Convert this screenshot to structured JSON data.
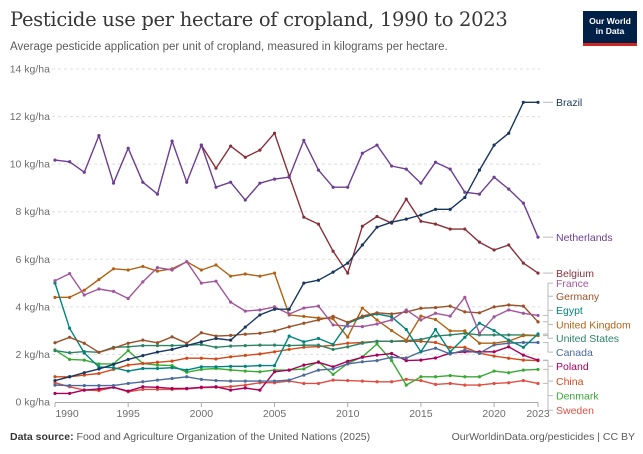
{
  "header": {
    "title": "Pesticide use per hectare of cropland, 1990 to 2023",
    "subtitle": "Average pesticide application per unit of cropland, measured in kilograms per hectare.",
    "logo_line1": "Our World",
    "logo_line2": "in Data"
  },
  "footer": {
    "source_label": "Data source:",
    "source_text": "Food and Agriculture Organization of the United Nations (2025)",
    "url_license": "OurWorldinData.org/pesticides | CC BY"
  },
  "chart_data": {
    "type": "line",
    "title": "Pesticide use per hectare of cropland, 1990 to 2023",
    "subtitle": "Average pesticide application per unit of cropland, measured in kilograms per hectare.",
    "xlabel": "",
    "ylabel": "",
    "unit": "kg/ha",
    "xlim": [
      1990,
      2023
    ],
    "ylim": [
      0,
      14
    ],
    "grid": "horizontal-dashed",
    "legend": "right-end-labels",
    "x_ticks": [
      1990,
      1995,
      2000,
      2005,
      2010,
      2015,
      2020,
      2023
    ],
    "y_ticks": [
      {
        "value": 0,
        "label": "0 kg/ha"
      },
      {
        "value": 2,
        "label": "2 kg/ha"
      },
      {
        "value": 4,
        "label": "4 kg/ha"
      },
      {
        "value": 6,
        "label": "6 kg/ha"
      },
      {
        "value": 8,
        "label": "8 kg/ha"
      },
      {
        "value": 10,
        "label": "10 kg/ha"
      },
      {
        "value": 12,
        "label": "12 kg/ha"
      },
      {
        "value": 14,
        "label": "14 kg/ha"
      }
    ],
    "x": [
      1990,
      1991,
      1992,
      1993,
      1994,
      1995,
      1996,
      1997,
      1998,
      1999,
      2000,
      2001,
      2002,
      2003,
      2004,
      2005,
      2006,
      2007,
      2008,
      2009,
      2010,
      2011,
      2012,
      2013,
      2014,
      2015,
      2016,
      2017,
      2018,
      2019,
      2020,
      2021,
      2022,
      2023
    ],
    "series": [
      {
        "name": "Brazil",
        "color": "#18375f",
        "label_value": 12.6,
        "values": [
          0.9,
          1.06,
          1.23,
          1.39,
          1.58,
          1.79,
          1.95,
          2.1,
          2.21,
          2.37,
          2.53,
          2.67,
          2.6,
          3.15,
          3.66,
          3.9,
          3.9,
          5.0,
          5.12,
          5.46,
          5.84,
          6.6,
          7.35,
          7.56,
          7.69,
          7.86,
          8.1,
          8.1,
          8.6,
          9.75,
          10.8,
          11.3,
          12.6,
          12.6
        ]
      },
      {
        "name": "Netherlands",
        "color": "#6d3e91",
        "label_value": 6.93,
        "values": [
          10.17,
          10.1,
          9.66,
          11.2,
          9.2,
          10.67,
          9.24,
          8.74,
          10.97,
          9.24,
          10.8,
          9.03,
          9.24,
          8.49,
          9.2,
          9.37,
          9.45,
          11.0,
          9.75,
          9.03,
          9.03,
          10.46,
          10.8,
          9.92,
          9.79,
          9.2,
          10.08,
          9.79,
          8.82,
          8.74,
          9.45,
          8.95,
          8.36,
          6.93
        ]
      },
      {
        "name": "Belgium",
        "color": "#883039",
        "label_value": 5.42,
        "values": [
          null,
          null,
          null,
          null,
          null,
          null,
          null,
          null,
          null,
          null,
          10.8,
          9.83,
          10.76,
          10.29,
          10.59,
          11.3,
          9.5,
          7.77,
          7.48,
          6.34,
          5.42,
          7.39,
          7.8,
          7.52,
          8.53,
          7.6,
          7.48,
          7.27,
          7.27,
          6.72,
          6.39,
          6.6,
          5.84,
          5.42
        ]
      },
      {
        "name": "France",
        "color": "#a2559c",
        "label_value": 5.0,
        "values": [
          5.1,
          5.4,
          4.5,
          4.75,
          4.65,
          4.35,
          5.05,
          5.65,
          5.55,
          5.9,
          5.0,
          5.08,
          4.2,
          3.82,
          3.87,
          4.0,
          3.7,
          3.95,
          4.03,
          3.24,
          3.19,
          3.17,
          3.28,
          3.45,
          3.87,
          3.45,
          3.73,
          3.61,
          4.4,
          2.89,
          3.58,
          3.87,
          3.73,
          3.64
        ]
      },
      {
        "name": "Germany",
        "color": "#9a5129",
        "label_value": 4.45,
        "values": [
          2.49,
          2.72,
          2.47,
          2.09,
          2.26,
          2.47,
          2.6,
          2.49,
          2.74,
          2.47,
          2.91,
          2.77,
          2.8,
          2.85,
          2.89,
          2.98,
          3.16,
          3.31,
          3.45,
          3.6,
          3.35,
          3.61,
          3.75,
          3.7,
          3.79,
          3.94,
          3.97,
          4.03,
          3.79,
          3.75,
          4.0,
          4.08,
          4.03,
          3.37
        ]
      },
      {
        "name": "Egypt",
        "color": "#00847e",
        "label_value": 3.85,
        "values": [
          5.0,
          3.1,
          2.06,
          1.47,
          1.44,
          1.3,
          1.41,
          1.41,
          1.44,
          1.34,
          1.48,
          1.48,
          1.5,
          1.5,
          1.53,
          1.53,
          2.77,
          2.53,
          2.67,
          2.42,
          3.31,
          3.56,
          3.7,
          3.58,
          3.05,
          2.11,
          3.05,
          2.11,
          2.72,
          3.31,
          3.0,
          2.6,
          2.3,
          2.86
        ]
      },
      {
        "name": "United Kingdom",
        "color": "#b16214",
        "label_value": 3.26,
        "values": [
          4.4,
          4.4,
          4.7,
          5.15,
          5.6,
          5.55,
          5.7,
          5.5,
          5.6,
          5.9,
          5.55,
          5.76,
          5.29,
          5.38,
          5.29,
          5.42,
          3.66,
          3.6,
          3.53,
          3.5,
          2.73,
          3.95,
          3.45,
          3.0,
          2.6,
          3.61,
          3.47,
          2.99,
          2.99,
          2.47,
          2.47,
          2.56,
          2.79,
          2.79
        ]
      },
      {
        "name": "United States",
        "color": "#2c8465",
        "label_value": 2.68,
        "values": [
          2.16,
          2.07,
          2.12,
          2.09,
          2.3,
          2.32,
          2.37,
          2.37,
          2.37,
          2.39,
          2.42,
          2.3,
          2.35,
          2.37,
          2.39,
          2.39,
          2.37,
          2.39,
          2.39,
          2.21,
          2.32,
          2.47,
          2.55,
          2.55,
          2.58,
          2.63,
          2.77,
          2.82,
          2.89,
          2.82,
          2.82,
          2.82,
          2.82,
          2.8
        ]
      },
      {
        "name": "Canada",
        "color": "#4c6a9c",
        "label_value": 2.1,
        "values": [
          0.71,
          0.69,
          0.69,
          0.69,
          0.69,
          0.78,
          0.85,
          0.92,
          0.99,
          1.06,
          0.95,
          0.9,
          0.88,
          0.88,
          0.88,
          0.88,
          0.92,
          1.13,
          1.34,
          1.39,
          1.6,
          1.69,
          1.74,
          1.88,
          1.85,
          2.11,
          2.26,
          2.02,
          2.18,
          2.05,
          2.4,
          2.47,
          2.5,
          2.5
        ]
      },
      {
        "name": "Poland",
        "color": "#a8005c",
        "label_value": 1.5,
        "values": [
          0.36,
          0.36,
          0.5,
          0.55,
          0.62,
          0.46,
          0.64,
          0.62,
          0.57,
          0.57,
          0.62,
          0.64,
          0.5,
          0.59,
          0.5,
          1.27,
          1.34,
          1.55,
          1.67,
          1.48,
          1.71,
          1.88,
          1.97,
          2.04,
          1.74,
          1.76,
          1.85,
          2.05,
          2.11,
          2.11,
          2.11,
          2.32,
          1.97,
          1.76
        ]
      },
      {
        "name": "China",
        "color": "#d04b1b",
        "label_value": 0.88,
        "values": [
          1.06,
          1.06,
          1.13,
          1.2,
          1.37,
          1.55,
          1.62,
          1.67,
          1.72,
          1.84,
          1.84,
          1.81,
          1.9,
          1.96,
          2.02,
          2.11,
          2.21,
          2.3,
          2.33,
          2.39,
          2.47,
          2.5,
          2.55,
          2.55,
          2.55,
          2.55,
          2.5,
          2.3,
          2.3,
          2.05,
          1.93,
          1.84,
          1.76,
          1.74
        ]
      },
      {
        "name": "Denmark",
        "color": "#38aa34",
        "label_value": 0.27,
        "values": [
          2.19,
          1.79,
          1.76,
          1.6,
          1.6,
          2.16,
          1.62,
          1.55,
          1.53,
          1.25,
          1.37,
          1.41,
          1.35,
          1.3,
          1.27,
          1.34,
          1.34,
          1.39,
          1.69,
          1.16,
          1.62,
          1.9,
          2.44,
          1.74,
          0.71,
          1.06,
          1.06,
          1.11,
          1.06,
          1.06,
          1.3,
          1.23,
          1.34,
          1.37
        ]
      },
      {
        "name": "Sweden",
        "color": "#e04e42",
        "label_value": -0.35,
        "values": [
          0.81,
          0.64,
          0.5,
          0.48,
          0.62,
          0.43,
          0.53,
          0.53,
          0.53,
          0.55,
          0.6,
          0.62,
          0.65,
          0.71,
          0.81,
          0.81,
          0.88,
          0.78,
          0.78,
          0.92,
          0.9,
          0.88,
          0.85,
          0.85,
          0.95,
          0.9,
          0.74,
          0.78,
          0.71,
          0.71,
          0.78,
          0.81,
          0.9,
          0.78
        ]
      }
    ]
  }
}
